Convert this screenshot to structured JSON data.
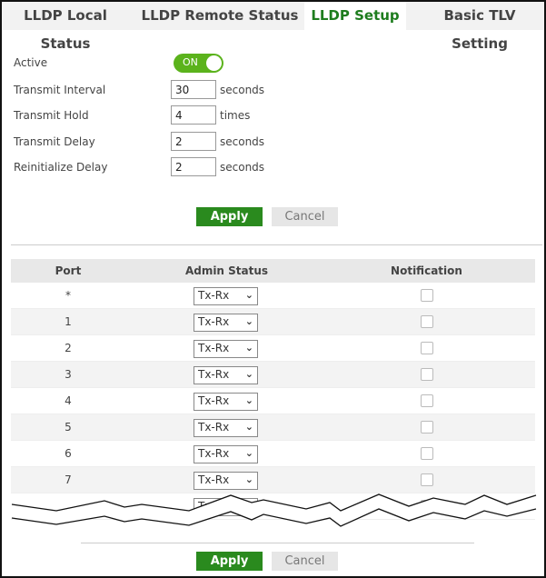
{
  "tabs": [
    {
      "label": "LLDP Local Status"
    },
    {
      "label": "LLDP Remote Status"
    },
    {
      "label": "LLDP Setup",
      "active": true
    },
    {
      "label": "Basic TLV Setting"
    }
  ],
  "form": {
    "active": {
      "label": "Active",
      "value": "ON"
    },
    "transmit_interval": {
      "label": "Transmit Interval",
      "value": "30",
      "unit": "seconds"
    },
    "transmit_hold": {
      "label": "Transmit Hold",
      "value": "4",
      "unit": "times"
    },
    "transmit_delay": {
      "label": "Transmit Delay",
      "value": "2",
      "unit": "seconds"
    },
    "reinitialize_delay": {
      "label": "Reinitialize Delay",
      "value": "2",
      "unit": "seconds"
    }
  },
  "buttons": {
    "apply": "Apply",
    "cancel": "Cancel"
  },
  "table": {
    "headers": [
      "Port",
      "Admin Status",
      "Notification"
    ],
    "rows": [
      {
        "port": "*",
        "admin_status": "Tx-Rx",
        "notification": false
      },
      {
        "port": "1",
        "admin_status": "Tx-Rx",
        "notification": false
      },
      {
        "port": "2",
        "admin_status": "Tx-Rx",
        "notification": false
      },
      {
        "port": "3",
        "admin_status": "Tx-Rx",
        "notification": false
      },
      {
        "port": "4",
        "admin_status": "Tx-Rx",
        "notification": false
      },
      {
        "port": "5",
        "admin_status": "Tx-Rx",
        "notification": false
      },
      {
        "port": "6",
        "admin_status": "Tx-Rx",
        "notification": false
      },
      {
        "port": "7",
        "admin_status": "Tx-Rx",
        "notification": false
      },
      {
        "port": "",
        "admin_status": "Tx-Rx",
        "notification": false
      }
    ]
  },
  "colors": {
    "accent": "#1e7d1e",
    "apply": "#2a8a1e",
    "toggle": "#5bb31c"
  }
}
